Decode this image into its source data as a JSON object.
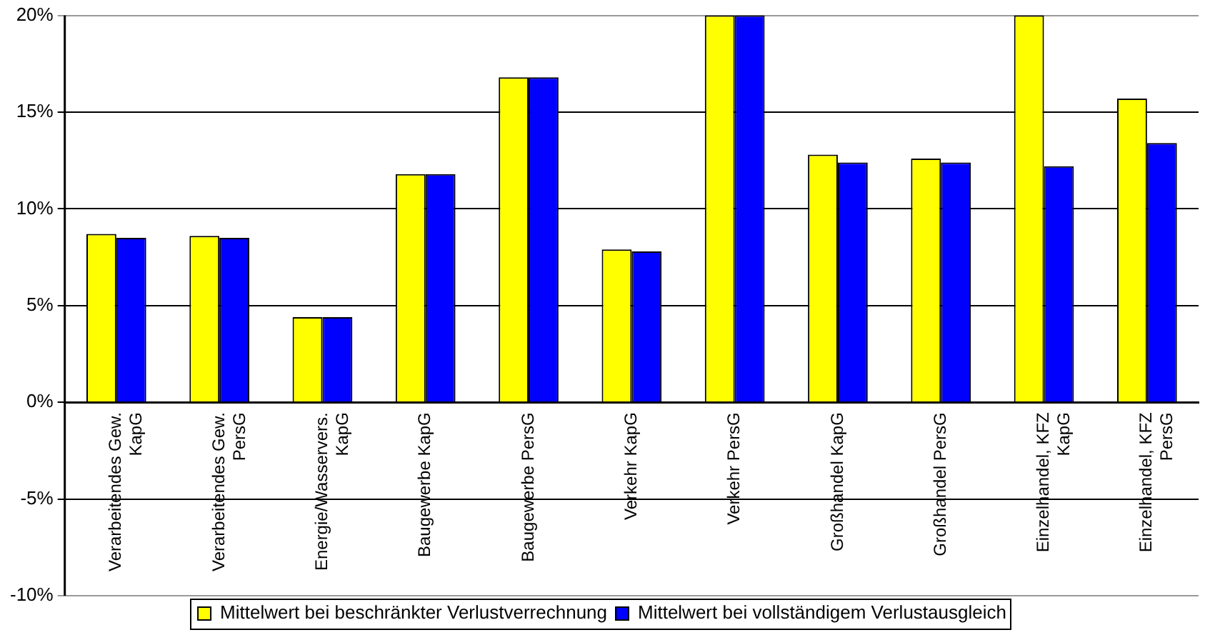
{
  "chart_data": {
    "type": "bar",
    "categories": [
      "Verarbeitendes Gew. KapG",
      "Verarbeitendes Gew. PersG",
      "Energie/Wasservers. KapG",
      "Baugewerbe KapG",
      "Baugewerbe PersG",
      "Verkehr KapG",
      "Verkehr PersG",
      "Großhandel KapG",
      "Großhandel PersG",
      "Einzelhandel, KFZ KapG",
      "Einzelhandel, KFZ PersG"
    ],
    "series": [
      {
        "name": "Mittelwert bei beschränkter Verlustverrechnung",
        "color": "#ffff00",
        "values": [
          8.7,
          8.6,
          4.4,
          11.8,
          16.8,
          7.9,
          20,
          12.8,
          12.6,
          20,
          15.7
        ]
      },
      {
        "name": "Mittelwert bei vollständigem Verlustausgleich",
        "color": "#0000ff",
        "values": [
          8.5,
          8.5,
          4.4,
          11.8,
          16.8,
          7.8,
          20,
          12.4,
          12.4,
          12.2,
          13.4
        ]
      }
    ],
    "ylim": [
      -10,
      20
    ],
    "yticks": [
      {
        "value": -10,
        "label": "-10%"
      },
      {
        "value": -5,
        "label": "-5%"
      },
      {
        "value": 0,
        "label": "0%"
      },
      {
        "value": 5,
        "label": "5%"
      },
      {
        "value": 10,
        "label": "10%"
      },
      {
        "value": 15,
        "label": "15%"
      },
      {
        "value": 20,
        "label": "20%"
      }
    ],
    "grid": "y",
    "legend": "bottom"
  }
}
